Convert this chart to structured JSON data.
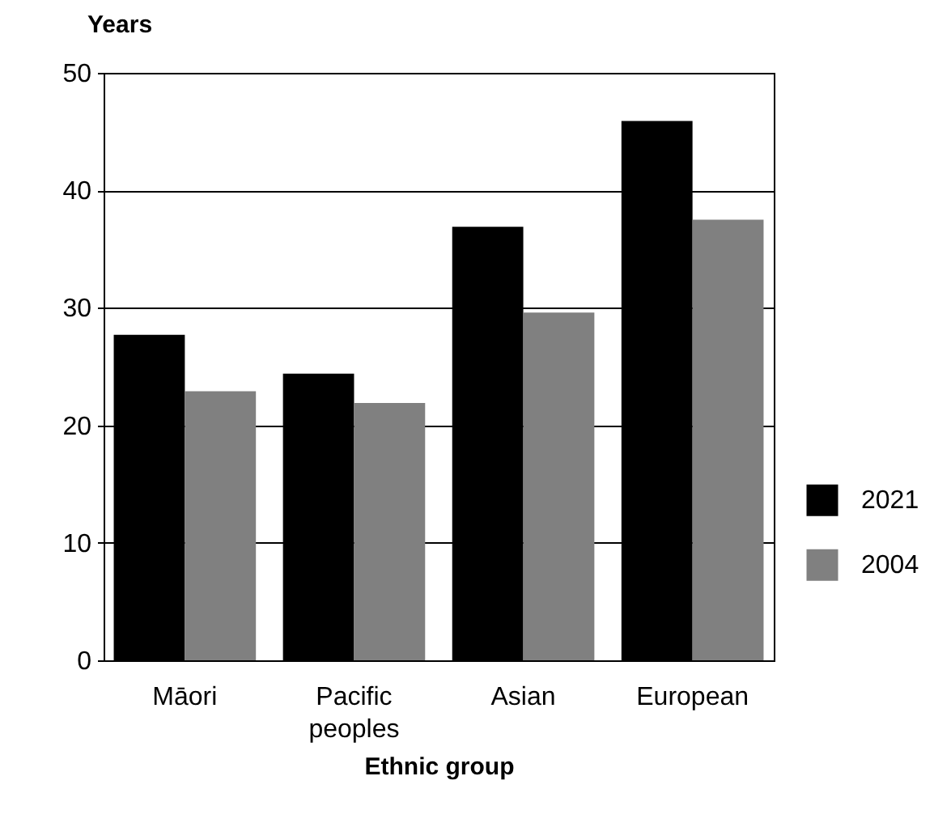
{
  "chart_data": {
    "type": "bar",
    "xlabel": "Ethnic group",
    "ylabel": "Years",
    "categories": [
      "Māori",
      "Pacific peoples",
      "Asian",
      "European"
    ],
    "series": [
      {
        "name": "2021",
        "color": "#000000",
        "values": [
          27.7,
          24.4,
          36.9,
          45.9
        ]
      },
      {
        "name": "2004",
        "color": "#808080",
        "values": [
          22.9,
          21.9,
          29.6,
          37.5
        ]
      }
    ],
    "ylim": [
      0,
      50
    ],
    "yticks": [
      0,
      10,
      20,
      30,
      40,
      50
    ],
    "grid": "y",
    "legend": "right"
  }
}
